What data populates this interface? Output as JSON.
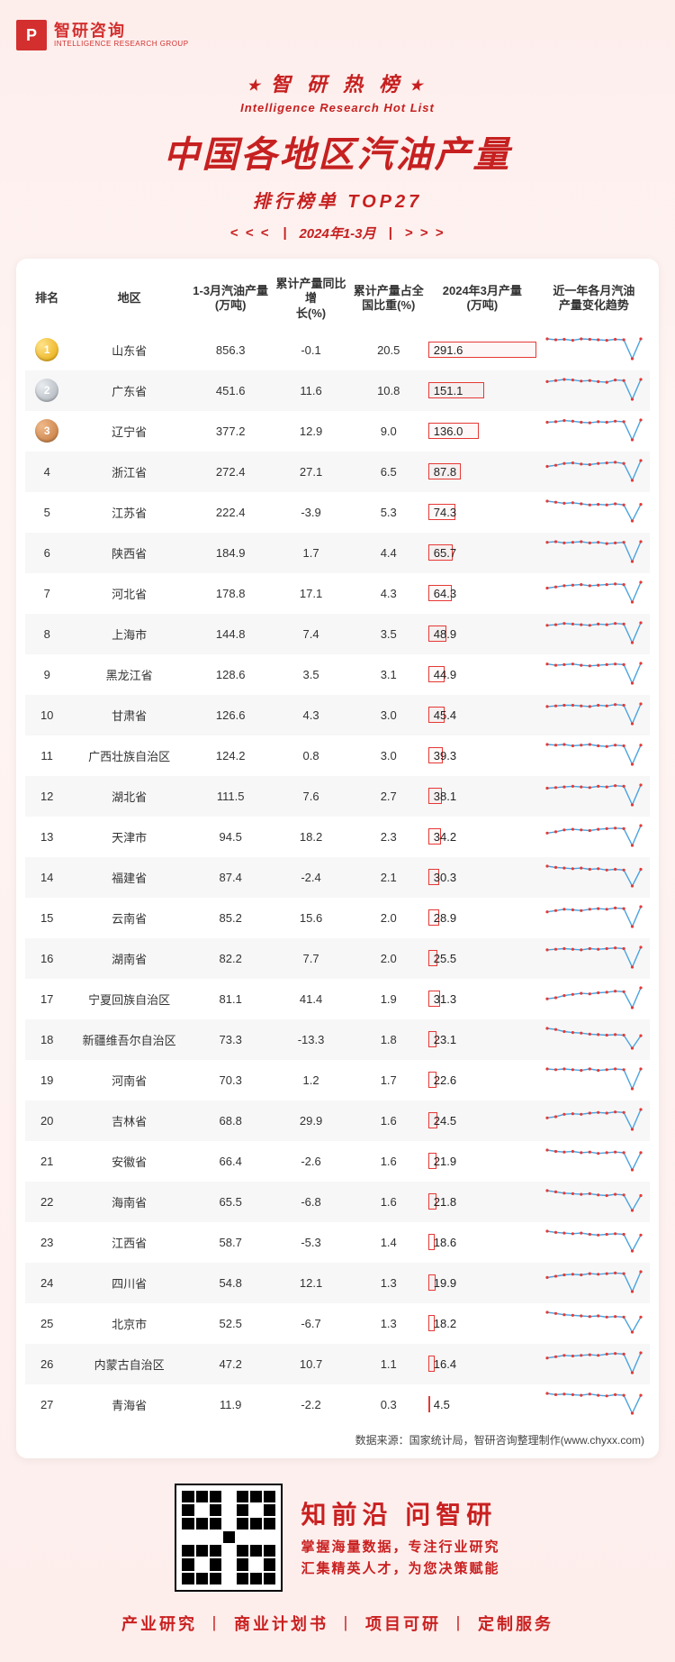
{
  "brand": {
    "logo_letter": "P",
    "name_cn": "智研咨询",
    "name_en": "INTELLIGENCE RESEARCH GROUP"
  },
  "banner": {
    "top": "智 研 热 榜",
    "en": "Intelligence Research Hot List",
    "title": "中国各地区汽油产量",
    "sub": "排行榜单  TOP27",
    "chev_left": "< < <",
    "chev_right": "> > >",
    "bar": "|",
    "date": "2024年1-3月"
  },
  "table": {
    "headers": {
      "rank": "排名",
      "region": "地区",
      "q1": "1-3月汽油产量\n(万吨)",
      "yoy": "累计产量同比增\n长(%)",
      "share": "累计产量占全\n国比重(%)",
      "mar": "2024年3月产量\n(万吨)",
      "trend": "近一年各月汽油\n产量变化趋势"
    },
    "mar_bar_max": 291.6,
    "colors": {
      "bar_border": "#e53935",
      "spark_line": "#4aa3df",
      "spark_dot": "#e53935",
      "alt_row_bg": "#f7f7f7",
      "text": "#333333",
      "brand_red": "#c62020"
    },
    "rows": [
      {
        "rank": 1,
        "medal": "gold",
        "region": "山东省",
        "q1": "856.3",
        "yoy": "-0.1",
        "share": "20.5",
        "mar": 291.6,
        "spark": [
          72,
          70,
          71,
          69,
          72,
          71,
          70,
          69,
          71,
          70,
          30,
          72
        ]
      },
      {
        "rank": 2,
        "medal": "silver",
        "region": "广东省",
        "q1": "451.6",
        "yoy": "11.6",
        "share": "10.8",
        "mar": 151.1,
        "spark": [
          60,
          62,
          64,
          63,
          61,
          62,
          60,
          59,
          63,
          62,
          28,
          64
        ]
      },
      {
        "rank": 3,
        "medal": "bronze",
        "region": "辽宁省",
        "q1": "377.2",
        "yoy": "12.9",
        "share": "9.0",
        "mar": 136.0,
        "spark": [
          58,
          59,
          61,
          60,
          58,
          57,
          59,
          58,
          60,
          59,
          27,
          62
        ]
      },
      {
        "rank": 4,
        "region": "浙江省",
        "q1": "272.4",
        "yoy": "27.1",
        "share": "6.5",
        "mar": 87.8,
        "spark": [
          50,
          52,
          55,
          56,
          54,
          53,
          55,
          56,
          57,
          55,
          26,
          60
        ]
      },
      {
        "rank": 5,
        "region": "江苏省",
        "q1": "222.4",
        "yoy": "-3.9",
        "share": "5.3",
        "mar": 74.3,
        "spark": [
          62,
          60,
          58,
          59,
          57,
          55,
          56,
          55,
          57,
          55,
          25,
          56
        ]
      },
      {
        "rank": 6,
        "region": "陕西省",
        "q1": "184.9",
        "yoy": "1.7",
        "share": "4.4",
        "mar": 65.7,
        "spark": [
          55,
          56,
          54,
          55,
          56,
          54,
          55,
          53,
          54,
          55,
          24,
          56
        ]
      },
      {
        "rank": 7,
        "region": "河北省",
        "q1": "178.8",
        "yoy": "17.1",
        "share": "4.3",
        "mar": 64.3,
        "spark": [
          48,
          50,
          52,
          53,
          54,
          52,
          53,
          54,
          55,
          54,
          24,
          58
        ]
      },
      {
        "rank": 8,
        "region": "上海市",
        "q1": "144.8",
        "yoy": "7.4",
        "share": "3.5",
        "mar": 48.9,
        "spark": [
          50,
          51,
          53,
          52,
          51,
          50,
          52,
          51,
          53,
          52,
          22,
          54
        ]
      },
      {
        "rank": 9,
        "region": "黑龙江省",
        "q1": "128.6",
        "yoy": "3.5",
        "share": "3.1",
        "mar": 44.9,
        "spark": [
          52,
          50,
          51,
          52,
          50,
          49,
          50,
          51,
          52,
          51,
          22,
          53
        ]
      },
      {
        "rank": 10,
        "region": "甘肃省",
        "q1": "126.6",
        "yoy": "4.3",
        "share": "3.0",
        "mar": 45.4,
        "spark": [
          48,
          49,
          50,
          50,
          49,
          48,
          50,
          49,
          51,
          50,
          22,
          52
        ]
      },
      {
        "rank": 11,
        "region": "广西壮族自治区",
        "q1": "124.2",
        "yoy": "0.8",
        "share": "3.0",
        "mar": 39.3,
        "spark": [
          50,
          49,
          50,
          48,
          49,
          50,
          48,
          47,
          49,
          48,
          20,
          49
        ]
      },
      {
        "rank": 12,
        "region": "湖北省",
        "q1": "111.5",
        "yoy": "7.6",
        "share": "2.7",
        "mar": 38.1,
        "spark": [
          46,
          47,
          48,
          49,
          48,
          47,
          49,
          48,
          50,
          49,
          20,
          51
        ]
      },
      {
        "rank": 13,
        "region": "天津市",
        "q1": "94.5",
        "yoy": "18.2",
        "share": "2.3",
        "mar": 34.2,
        "spark": [
          40,
          42,
          45,
          46,
          45,
          44,
          46,
          47,
          48,
          47,
          20,
          52
        ]
      },
      {
        "rank": 14,
        "region": "福建省",
        "q1": "87.4",
        "yoy": "-2.4",
        "share": "2.1",
        "mar": 30.3,
        "spark": [
          50,
          48,
          47,
          46,
          47,
          45,
          46,
          44,
          45,
          44,
          19,
          45
        ]
      },
      {
        "rank": 15,
        "region": "云南省",
        "q1": "85.2",
        "yoy": "15.6",
        "share": "2.0",
        "mar": 28.9,
        "spark": [
          42,
          44,
          46,
          45,
          44,
          46,
          47,
          46,
          48,
          47,
          19,
          50
        ]
      },
      {
        "rank": 16,
        "region": "湖南省",
        "q1": "82.2",
        "yoy": "7.7",
        "share": "2.0",
        "mar": 25.5,
        "spark": [
          44,
          45,
          46,
          45,
          44,
          46,
          45,
          46,
          47,
          46,
          18,
          48
        ]
      },
      {
        "rank": 17,
        "region": "宁夏回族自治区",
        "q1": "81.1",
        "yoy": "41.4",
        "share": "1.9",
        "mar": 31.3,
        "spark": [
          36,
          38,
          42,
          44,
          46,
          45,
          47,
          48,
          50,
          49,
          20,
          56
        ]
      },
      {
        "rank": 18,
        "region": "新疆维吾尔自治区",
        "q1": "73.3",
        "yoy": "-13.3",
        "share": "1.8",
        "mar": 23.1,
        "spark": [
          56,
          54,
          50,
          48,
          47,
          45,
          44,
          43,
          44,
          43,
          18,
          42
        ]
      },
      {
        "rank": 19,
        "region": "河南省",
        "q1": "70.3",
        "yoy": "1.2",
        "share": "1.7",
        "mar": 22.6,
        "spark": [
          46,
          45,
          46,
          45,
          44,
          46,
          44,
          45,
          46,
          45,
          18,
          46
        ]
      },
      {
        "rank": 20,
        "region": "吉林省",
        "q1": "68.8",
        "yoy": "29.9",
        "share": "1.6",
        "mar": 24.5,
        "spark": [
          38,
          40,
          44,
          45,
          44,
          46,
          47,
          46,
          48,
          47,
          19,
          52
        ]
      },
      {
        "rank": 21,
        "region": "安徽省",
        "q1": "66.4",
        "yoy": "-2.6",
        "share": "1.6",
        "mar": 21.9,
        "spark": [
          48,
          46,
          45,
          46,
          44,
          45,
          43,
          44,
          45,
          44,
          18,
          44
        ]
      },
      {
        "rank": 22,
        "region": "海南省",
        "q1": "65.5",
        "yoy": "-6.8",
        "share": "1.6",
        "mar": 21.8,
        "spark": [
          50,
          48,
          46,
          45,
          44,
          45,
          43,
          42,
          44,
          43,
          18,
          42
        ]
      },
      {
        "rank": 23,
        "region": "江西省",
        "q1": "58.7",
        "yoy": "-5.3",
        "share": "1.4",
        "mar": 18.6,
        "spark": [
          48,
          46,
          45,
          44,
          45,
          43,
          42,
          43,
          44,
          43,
          17,
          42
        ]
      },
      {
        "rank": 24,
        "region": "四川省",
        "q1": "54.8",
        "yoy": "12.1",
        "share": "1.3",
        "mar": 19.9,
        "spark": [
          40,
          42,
          44,
          45,
          44,
          46,
          45,
          46,
          47,
          46,
          18,
          49
        ]
      },
      {
        "rank": 25,
        "region": "北京市",
        "q1": "52.5",
        "yoy": "-6.7",
        "share": "1.3",
        "mar": 18.2,
        "spark": [
          50,
          48,
          46,
          45,
          44,
          43,
          44,
          42,
          43,
          42,
          17,
          42
        ]
      },
      {
        "rank": 26,
        "region": "内蒙古自治区",
        "q1": "47.2",
        "yoy": "10.7",
        "share": "1.1",
        "mar": 16.4,
        "spark": [
          40,
          42,
          44,
          43,
          44,
          45,
          44,
          46,
          47,
          46,
          17,
          48
        ]
      },
      {
        "rank": 27,
        "region": "青海省",
        "q1": "11.9",
        "yoy": "-2.2",
        "share": "0.3",
        "mar": 4.5,
        "spark": [
          46,
          44,
          45,
          44,
          43,
          45,
          43,
          42,
          44,
          43,
          15,
          43
        ]
      }
    ],
    "source": "数据来源：国家统计局，智研咨询整理制作(www.chyxx.com)"
  },
  "footer": {
    "line1": "知前沿 问智研",
    "line2": "掌握海量数据，专注行业研究",
    "line3": "汇集精英人才，为您决策赋能",
    "services": [
      "产业研究",
      "商业计划书",
      "项目可研",
      "定制服务"
    ],
    "sep": "丨"
  }
}
